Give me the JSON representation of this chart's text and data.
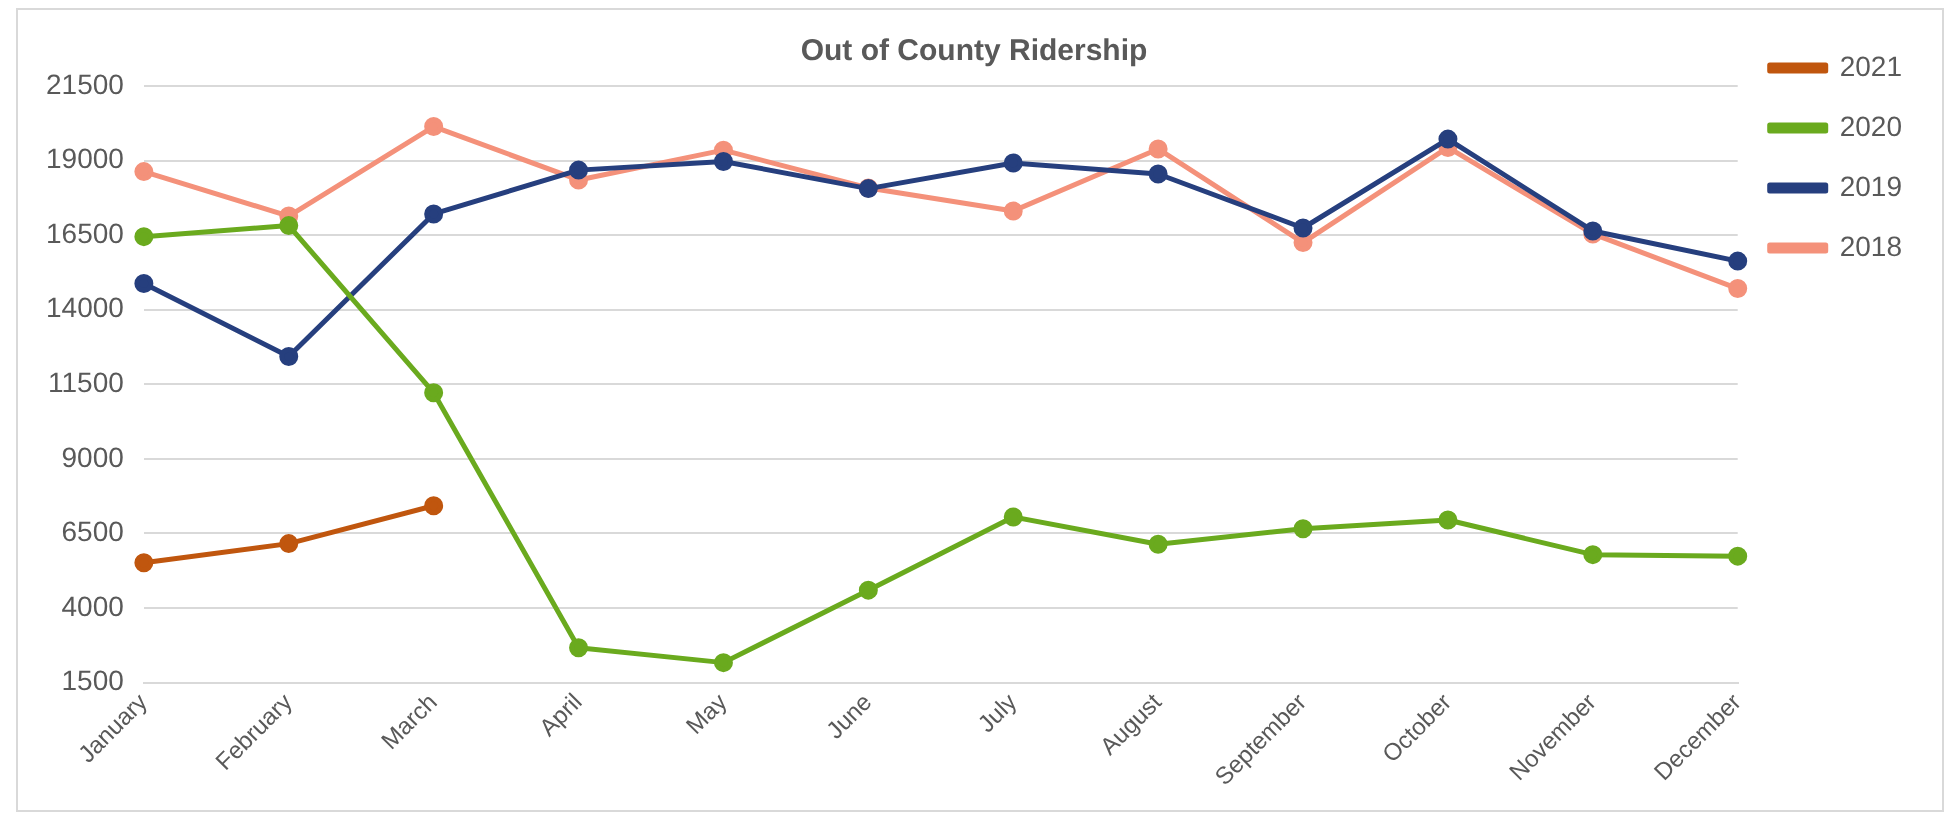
{
  "chart_data": {
    "type": "line",
    "title": "Out of County Ridership",
    "categories": [
      "January",
      "February",
      "March",
      "April",
      "May",
      "June",
      "July",
      "August",
      "September",
      "October",
      "November",
      "December"
    ],
    "series": [
      {
        "name": "2021",
        "color": "#c0560e",
        "values": [
          5520,
          6160,
          7430,
          null,
          null,
          null,
          null,
          null,
          null,
          null,
          null,
          null
        ]
      },
      {
        "name": "2020",
        "color": "#6aaa1e",
        "values": [
          16450,
          16820,
          11220,
          2670,
          2170,
          4600,
          7050,
          6140,
          6660,
          6950,
          5790,
          5740
        ]
      },
      {
        "name": "2019",
        "color": "#263f7e",
        "values": [
          14880,
          12430,
          17210,
          18680,
          18970,
          18060,
          18920,
          18550,
          16740,
          19720,
          16640,
          15630
        ]
      },
      {
        "name": "2018",
        "color": "#f4917a",
        "values": [
          18630,
          17140,
          20140,
          18350,
          19350,
          18080,
          17310,
          19390,
          16250,
          19440,
          16540,
          14710
        ]
      }
    ],
    "ylim": [
      1500,
      21500
    ],
    "yticks": [
      1500,
      4000,
      6500,
      9000,
      11500,
      14000,
      16500,
      19000,
      21500
    ],
    "grid": "y",
    "legend": "right",
    "marker": "circle",
    "line_style": "solid"
  }
}
